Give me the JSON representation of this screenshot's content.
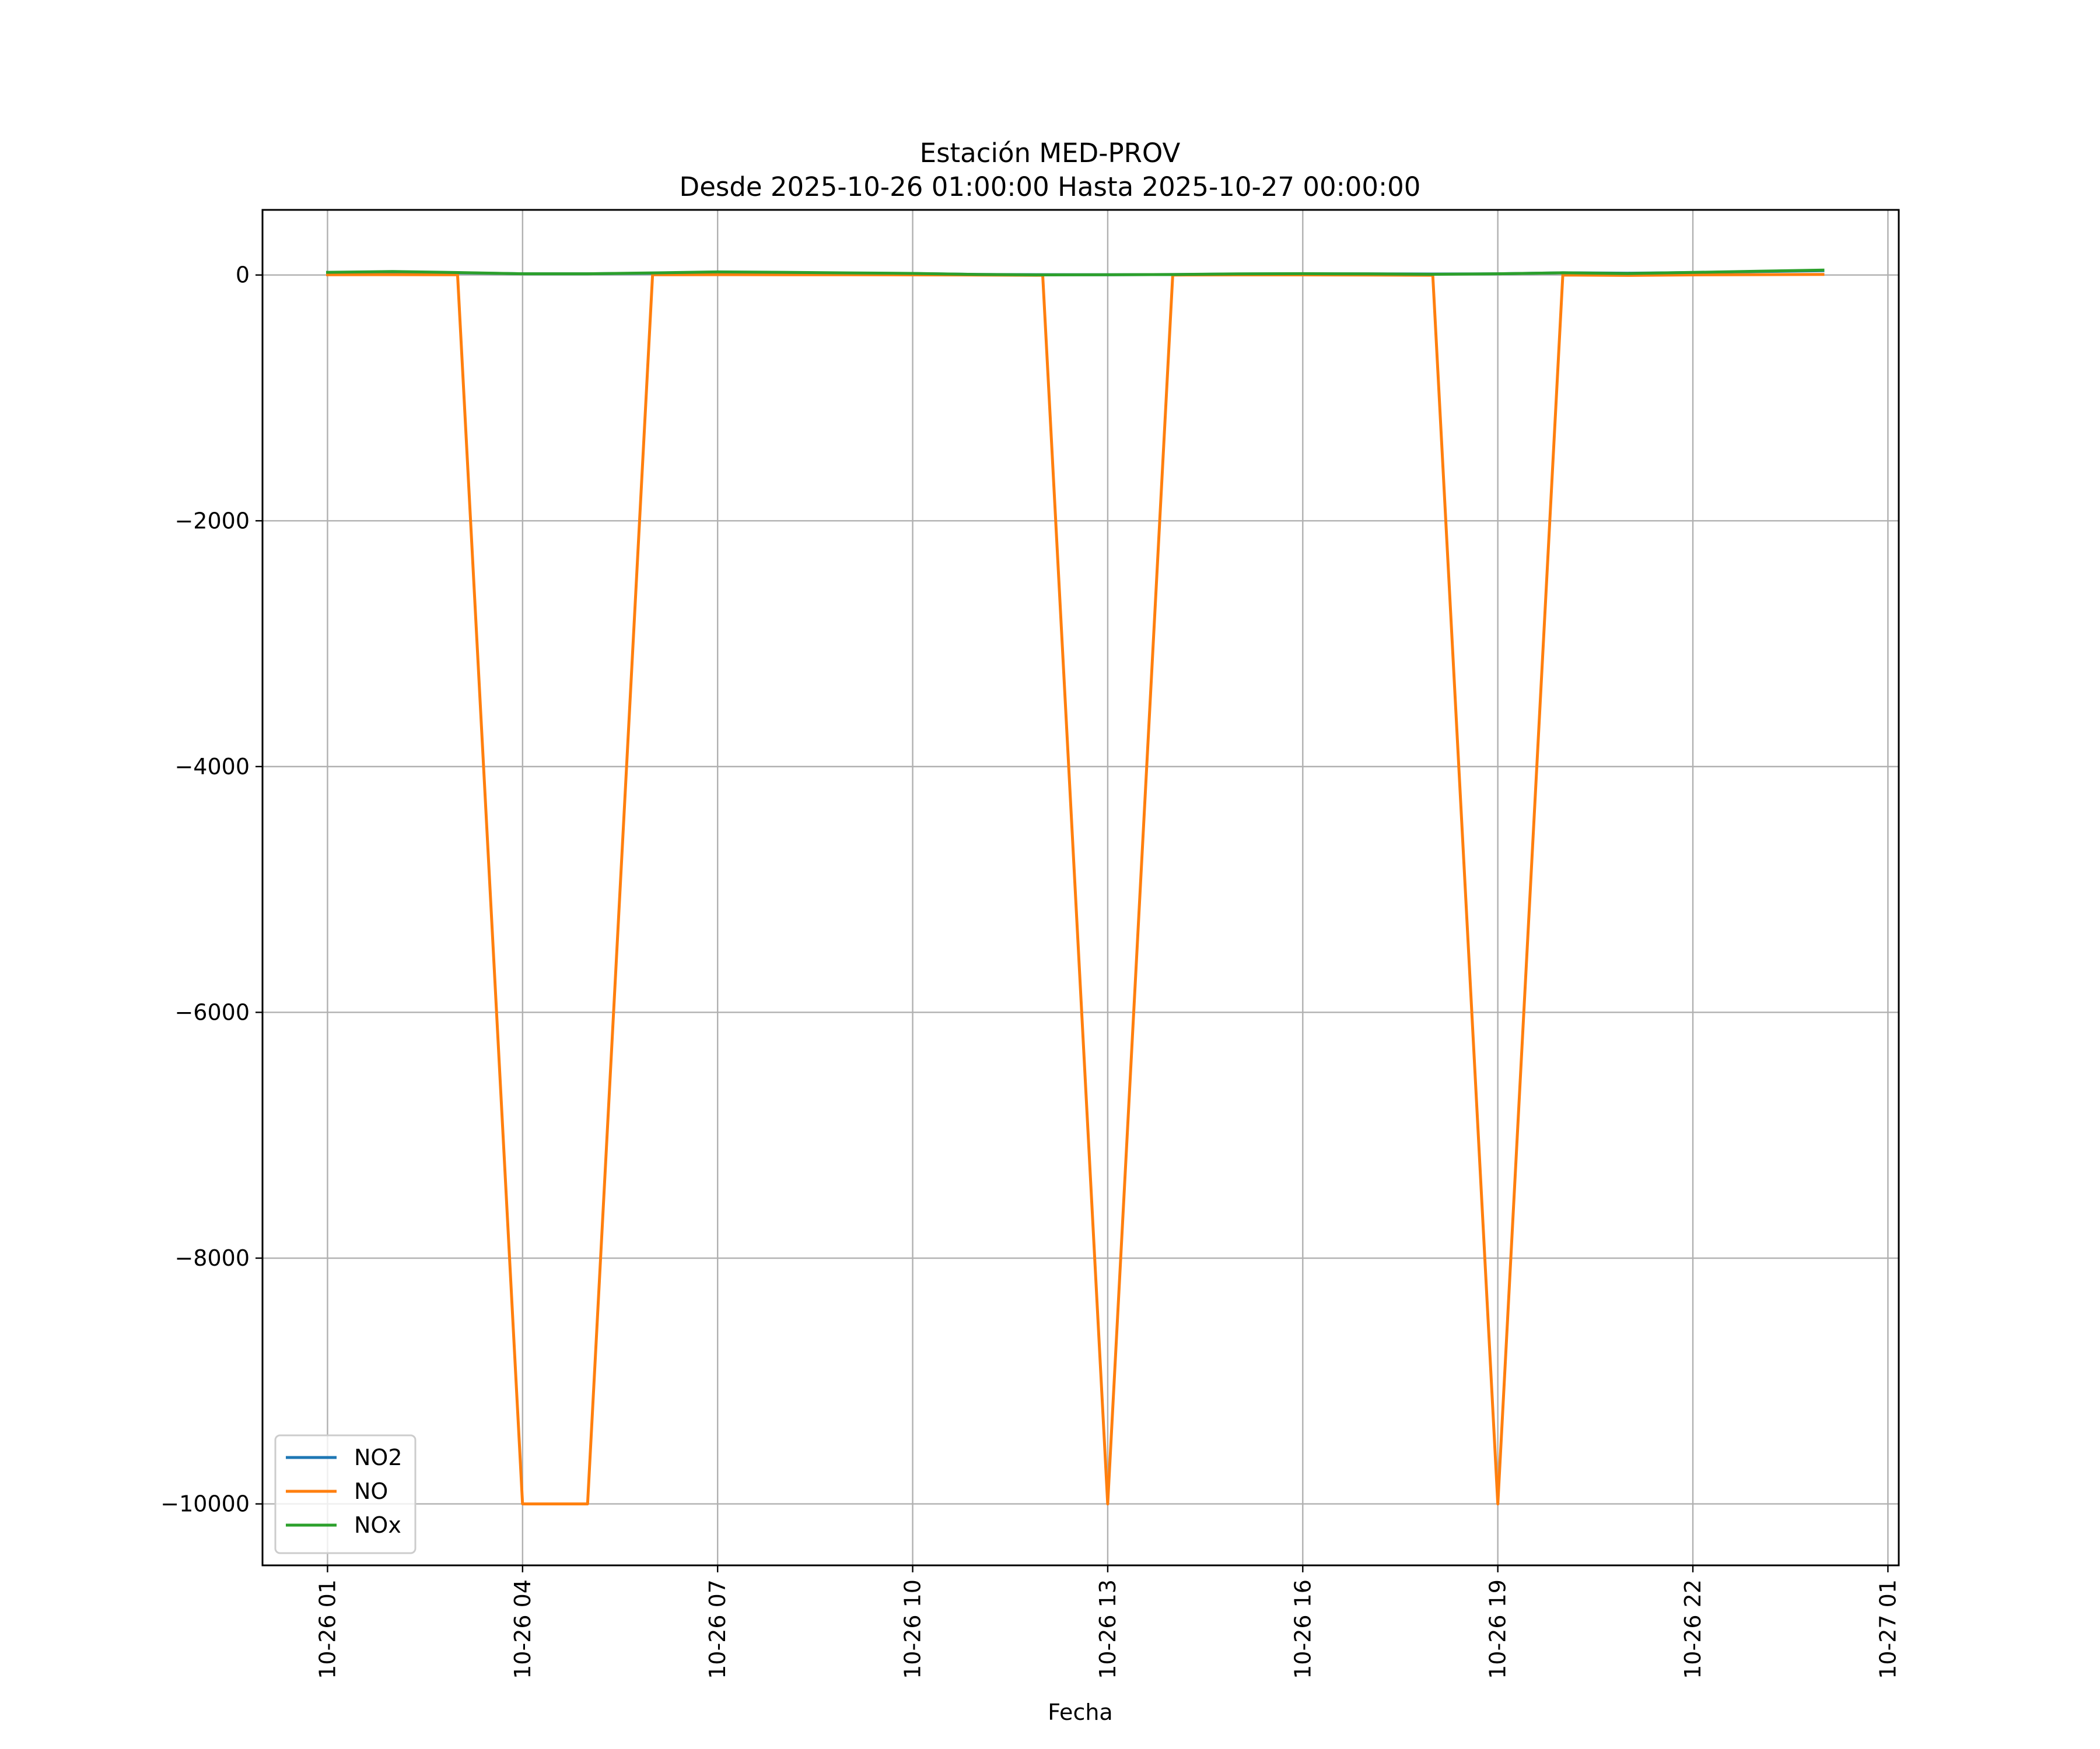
{
  "chart_data": {
    "type": "line",
    "title": "Estación MED-PROV",
    "subtitle": "Desde 2025-10-26 01:00:00 Hasta 2025-10-27 00:00:00",
    "xlabel": "Fecha",
    "ylabel": "",
    "x": [
      "2025-10-26 01:00",
      "2025-10-26 02:00",
      "2025-10-26 03:00",
      "2025-10-26 04:00",
      "2025-10-26 05:00",
      "2025-10-26 06:00",
      "2025-10-26 07:00",
      "2025-10-26 08:00",
      "2025-10-26 09:00",
      "2025-10-26 10:00",
      "2025-10-26 11:00",
      "2025-10-26 12:00",
      "2025-10-26 13:00",
      "2025-10-26 14:00",
      "2025-10-26 15:00",
      "2025-10-26 16:00",
      "2025-10-26 17:00",
      "2025-10-26 18:00",
      "2025-10-26 19:00",
      "2025-10-26 20:00",
      "2025-10-26 21:00",
      "2025-10-26 22:00",
      "2025-10-26 23:00",
      "2025-10-27 00:00"
    ],
    "xlim": [
      "2025-10-26 00:00",
      "2025-10-27 01:10"
    ],
    "ylim": [
      -10500,
      530
    ],
    "xticks": [
      "10-26 01",
      "10-26 04",
      "10-26 07",
      "10-26 10",
      "10-26 13",
      "10-26 16",
      "10-26 19",
      "10-26 22",
      "10-27 01"
    ],
    "yticks": [
      0,
      -2000,
      -4000,
      -6000,
      -8000,
      -10000
    ],
    "ytick_labels": [
      "0",
      "−2000",
      "−4000",
      "−6000",
      "−8000",
      "−10000"
    ],
    "grid": true,
    "legend_position": "lower-left",
    "series": [
      {
        "name": "NO2",
        "color": "#1f77b4",
        "values": [
          20,
          25,
          18,
          10,
          10,
          15,
          22,
          20,
          15,
          12,
          5,
          3,
          2,
          4,
          8,
          10,
          9,
          8,
          10,
          18,
          15,
          20,
          28,
          35
        ]
      },
      {
        "name": "NO",
        "color": "#ff7f0e",
        "values": [
          2,
          3,
          2,
          -10000,
          -10000,
          2,
          3,
          2,
          2,
          1,
          0,
          -2,
          -10000,
          0,
          1,
          1,
          0,
          -2,
          -10000,
          0,
          -3,
          1,
          3,
          5
        ]
      },
      {
        "name": "NOx",
        "color": "#2ca02c",
        "values": [
          22,
          28,
          20,
          10,
          10,
          17,
          25,
          22,
          17,
          13,
          5,
          1,
          2,
          4,
          9,
          11,
          9,
          6,
          10,
          18,
          12,
          21,
          31,
          40
        ]
      }
    ]
  }
}
